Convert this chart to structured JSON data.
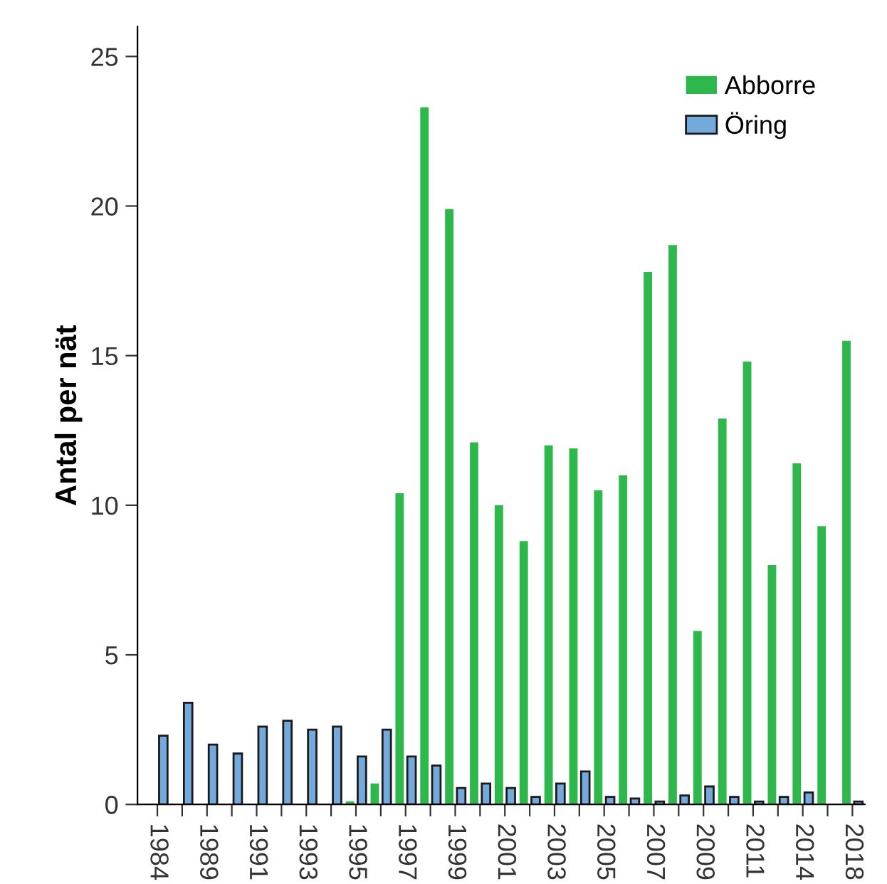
{
  "chart_data": {
    "type": "bar",
    "ylabel": "Antal per nät",
    "categories": [
      "1984",
      null,
      "1989",
      null,
      "1991",
      null,
      "1993",
      null,
      "1995",
      null,
      "1997",
      null,
      "1999",
      null,
      "2001",
      null,
      "2003",
      null,
      "2005",
      null,
      "2007",
      null,
      "2009",
      null,
      "2011",
      null,
      "2014",
      null,
      "2018"
    ],
    "series": [
      {
        "name": "Abborre",
        "color": "#2eb84b",
        "values": [
          null,
          null,
          null,
          null,
          null,
          null,
          null,
          null,
          0.1,
          0.7,
          10.4,
          23.3,
          19.9,
          12.1,
          10.0,
          8.8,
          12.0,
          11.9,
          10.5,
          11.0,
          17.8,
          18.7,
          5.8,
          12.9,
          14.8,
          8.0,
          11.4,
          9.3,
          15.5
        ]
      },
      {
        "name": "Öring",
        "color": "#74a9dc",
        "values": [
          2.3,
          3.4,
          2.0,
          1.7,
          2.6,
          2.8,
          2.5,
          2.6,
          1.6,
          2.5,
          1.6,
          1.3,
          0.55,
          0.7,
          0.55,
          0.25,
          0.7,
          1.1,
          0.25,
          0.2,
          0.1,
          0.3,
          0.6,
          0.25,
          0.1,
          0.25,
          0.4,
          null,
          0.1
        ]
      }
    ],
    "ylim": [
      0,
      26
    ],
    "yticks": [
      0,
      5,
      10,
      15,
      20,
      25
    ],
    "grid": false,
    "legend": "top right"
  }
}
